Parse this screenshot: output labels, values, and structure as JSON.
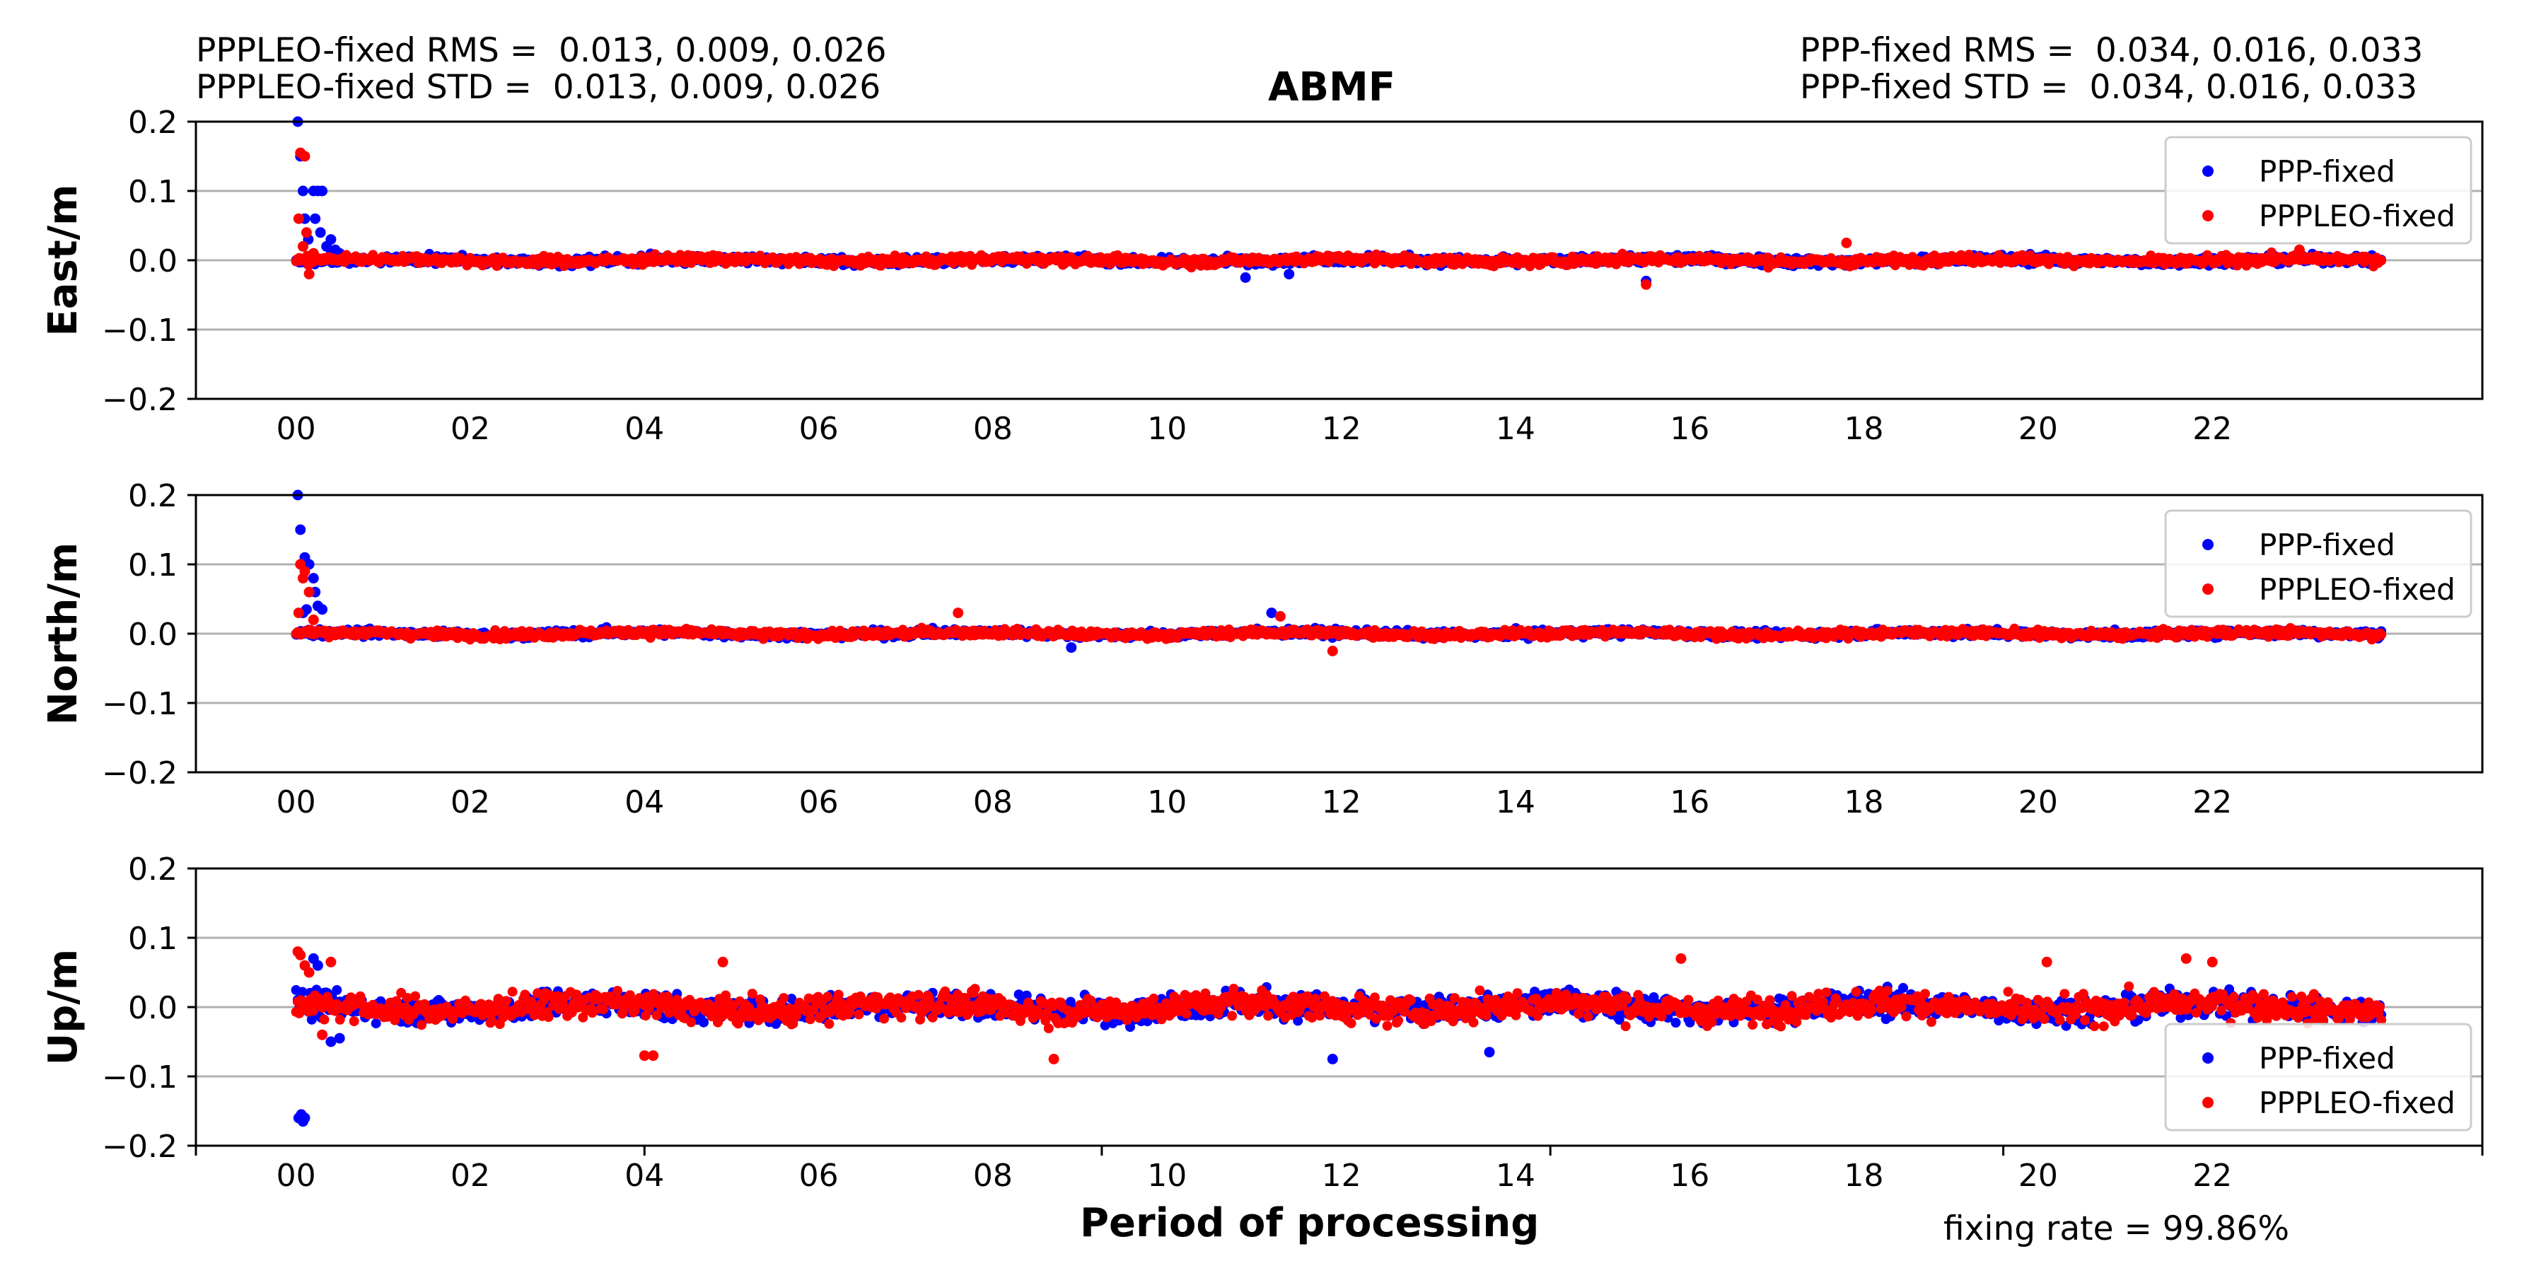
{
  "header": {
    "left_line1": "PPPLEO-fixed RMS =  0.013, 0.009, 0.026",
    "left_line2": "PPPLEO-fixed STD =  0.013, 0.009, 0.026",
    "right_line1": "PPP-fixed RMS =  0.034, 0.016, 0.033",
    "right_line2": "PPP-fixed STD =  0.034, 0.016, 0.033"
  },
  "title": "ABMF",
  "xlabel": "Period of processing",
  "fixing_rate": "fixing rate =  99.86%",
  "colors": {
    "ppp_fixed": "#0000ff",
    "pppleo_fixed": "#ff0000",
    "grid": "#b0b0b0"
  },
  "chart_data": [
    {
      "type": "scatter",
      "ylabel": "East/m",
      "ylim": [
        -0.2,
        0.2
      ],
      "yticks": [
        "0.2",
        "0.1",
        "0.0",
        "−0.1",
        "−0.2"
      ],
      "xlim": [
        -1.15,
        25.1
      ],
      "xticks": [
        "00",
        "02",
        "04",
        "06",
        "08",
        "10",
        "12",
        "14",
        "16",
        "18",
        "20",
        "22"
      ],
      "grid": true,
      "legend": "top-right",
      "series": [
        {
          "name": "PPP-fixed",
          "color": "#0000ff",
          "noise": 0.008,
          "points": [
            [
              0.02,
              0.2
            ],
            [
              0.05,
              0.15
            ],
            [
              0.08,
              0.1
            ],
            [
              0.1,
              0.06
            ],
            [
              0.14,
              0.03
            ],
            [
              0.2,
              0.1
            ],
            [
              0.25,
              0.1
            ],
            [
              0.3,
              0.1
            ],
            [
              0.22,
              0.06
            ],
            [
              0.28,
              0.04
            ],
            [
              0.35,
              0.02
            ],
            [
              0.4,
              0.03
            ],
            [
              0.45,
              0.015
            ],
            [
              0.5,
              0.01
            ],
            [
              10.9,
              -0.025
            ],
            [
              11.4,
              -0.02
            ],
            [
              15.5,
              -0.03
            ]
          ]
        },
        {
          "name": "PPPLEO-fixed",
          "color": "#ff0000",
          "noise": 0.008,
          "points": [
            [
              0.05,
              0.155
            ],
            [
              0.1,
              0.15
            ],
            [
              0.03,
              0.06
            ],
            [
              0.12,
              0.04
            ],
            [
              0.08,
              0.02
            ],
            [
              0.15,
              -0.02
            ],
            [
              0.2,
              0.01
            ],
            [
              15.5,
              -0.035
            ],
            [
              17.8,
              0.025
            ],
            [
              23.0,
              0.015
            ]
          ]
        }
      ]
    },
    {
      "type": "scatter",
      "ylabel": "North/m",
      "ylim": [
        -0.2,
        0.2
      ],
      "yticks": [
        "0.2",
        "0.1",
        "0.0",
        "−0.1",
        "−0.2"
      ],
      "xlim": [
        -1.15,
        25.1
      ],
      "xticks": [
        "00",
        "02",
        "04",
        "06",
        "08",
        "10",
        "12",
        "14",
        "16",
        "18",
        "20",
        "22"
      ],
      "grid": true,
      "legend": "top-right",
      "series": [
        {
          "name": "PPP-fixed",
          "color": "#0000ff",
          "noise": 0.007,
          "points": [
            [
              0.02,
              0.2
            ],
            [
              0.05,
              0.15
            ],
            [
              0.1,
              0.11
            ],
            [
              0.15,
              0.1
            ],
            [
              0.2,
              0.08
            ],
            [
              0.22,
              0.06
            ],
            [
              0.25,
              0.04
            ],
            [
              0.3,
              0.035
            ],
            [
              0.12,
              0.035
            ],
            [
              0.08,
              0.03
            ],
            [
              11.2,
              0.03
            ],
            [
              8.9,
              -0.02
            ]
          ]
        },
        {
          "name": "PPPLEO-fixed",
          "color": "#ff0000",
          "noise": 0.007,
          "points": [
            [
              0.05,
              0.1
            ],
            [
              0.1,
              0.09
            ],
            [
              0.08,
              0.08
            ],
            [
              0.15,
              0.06
            ],
            [
              0.03,
              0.03
            ],
            [
              0.2,
              0.02
            ],
            [
              7.6,
              0.03
            ],
            [
              11.3,
              0.025
            ],
            [
              11.9,
              -0.025
            ]
          ]
        }
      ]
    },
    {
      "type": "scatter",
      "ylabel": "Up/m",
      "ylim": [
        -0.2,
        0.2
      ],
      "yticks": [
        "0.2",
        "0.1",
        "0.0",
        "−0.1",
        "−0.2"
      ],
      "xlim": [
        -1.15,
        25.1
      ],
      "xticks": [
        "00",
        "02",
        "04",
        "06",
        "08",
        "10",
        "12",
        "14",
        "16",
        "18",
        "20",
        "22"
      ],
      "grid": true,
      "legend": "bottom-right",
      "series": [
        {
          "name": "PPP-fixed",
          "color": "#0000ff",
          "noise": 0.024,
          "points": [
            [
              0.03,
              -0.16
            ],
            [
              0.08,
              -0.165
            ],
            [
              0.06,
              -0.155
            ],
            [
              0.1,
              -0.16
            ],
            [
              0.2,
              0.07
            ],
            [
              0.25,
              0.06
            ],
            [
              0.4,
              -0.05
            ],
            [
              0.5,
              -0.045
            ],
            [
              11.9,
              -0.075
            ],
            [
              13.7,
              -0.065
            ]
          ]
        },
        {
          "name": "PPPLEO-fixed",
          "color": "#ff0000",
          "noise": 0.024,
          "points": [
            [
              0.02,
              0.08
            ],
            [
              0.05,
              0.075
            ],
            [
              0.1,
              0.06
            ],
            [
              0.15,
              0.05
            ],
            [
              0.3,
              -0.04
            ],
            [
              0.4,
              0.065
            ],
            [
              4.0,
              -0.07
            ],
            [
              4.1,
              -0.07
            ],
            [
              4.9,
              0.065
            ],
            [
              8.7,
              -0.075
            ],
            [
              15.9,
              0.07
            ],
            [
              20.1,
              0.065
            ],
            [
              21.7,
              0.07
            ],
            [
              22.0,
              0.065
            ]
          ]
        }
      ]
    }
  ]
}
